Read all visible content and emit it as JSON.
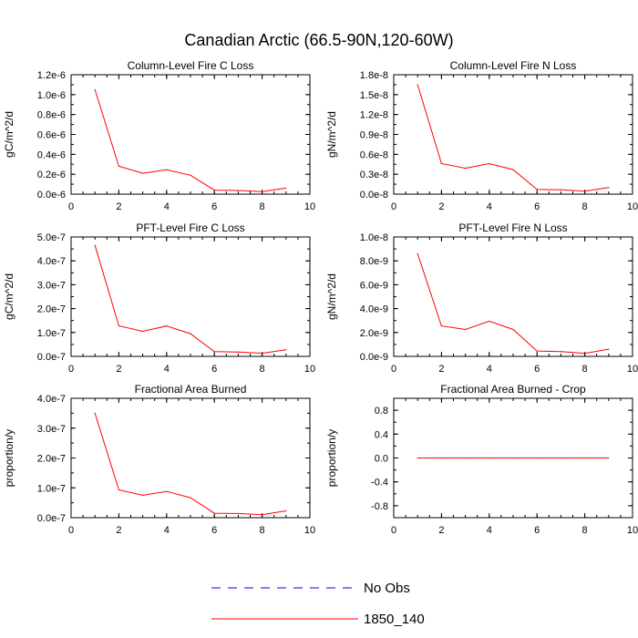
{
  "figure": {
    "title": "Canadian Arctic (66.5-90N,120-60W)"
  },
  "legend": {
    "placement": "bottom-center",
    "entries": [
      {
        "label": "No Obs",
        "color": "#0000ff",
        "dash": "dashed"
      },
      {
        "label": "1850_140",
        "color": "#ff0000",
        "dash": "solid"
      }
    ]
  },
  "chart_data": [
    {
      "type": "line",
      "title": "Column-Level Fire C Loss",
      "xlabel": "",
      "ylabel": "gC/m^2/d",
      "xlim": [
        0,
        10
      ],
      "ylim": [
        0,
        1.2e-06
      ],
      "xticks": [
        "0",
        "2",
        "4",
        "6",
        "8",
        "10"
      ],
      "yticks": [
        "0.0e-6",
        "0.2e-6",
        "0.4e-6",
        "0.6e-6",
        "0.8e-6",
        "1.0e-6",
        "1.2e-6"
      ],
      "series": [
        {
          "name": "1850_140",
          "color": "#ff0000",
          "x": [
            1,
            2,
            3,
            4,
            5,
            6,
            7,
            8,
            9
          ],
          "y": [
            1.05e-06,
            2.8e-07,
            2.1e-07,
            2.45e-07,
            1.9e-07,
            4e-08,
            3.7e-08,
            2.5e-08,
            6e-08
          ]
        }
      ]
    },
    {
      "type": "line",
      "title": "Column-Level Fire N Loss",
      "xlabel": "",
      "ylabel": "gN/m^2/d",
      "xlim": [
        0,
        10
      ],
      "ylim": [
        0,
        1.8e-08
      ],
      "xticks": [
        "0",
        "2",
        "4",
        "6",
        "8",
        "10"
      ],
      "yticks": [
        "0.0e-8",
        "0.3e-8",
        "0.6e-8",
        "0.9e-8",
        "1.2e-8",
        "1.5e-8",
        "1.8e-8"
      ],
      "series": [
        {
          "name": "1850_140",
          "color": "#ff0000",
          "x": [
            1,
            2,
            3,
            4,
            5,
            6,
            7,
            8,
            9
          ],
          "y": [
            1.65e-08,
            4.6e-09,
            3.9e-09,
            4.6e-09,
            3.7e-09,
            7e-10,
            6.5e-10,
            4.5e-10,
            1e-09
          ]
        }
      ]
    },
    {
      "type": "line",
      "title": "PFT-Level Fire C Loss",
      "xlabel": "",
      "ylabel": "gC/m^2/d",
      "xlim": [
        0,
        10
      ],
      "ylim": [
        0,
        5e-07
      ],
      "xticks": [
        "0",
        "2",
        "4",
        "6",
        "8",
        "10"
      ],
      "yticks": [
        "0.0e-7",
        "1.0e-7",
        "2.0e-7",
        "3.0e-7",
        "4.0e-7",
        "5.0e-7"
      ],
      "series": [
        {
          "name": "1850_140",
          "color": "#ff0000",
          "x": [
            1,
            2,
            3,
            4,
            5,
            6,
            7,
            8,
            9
          ],
          "y": [
            4.65e-07,
            1.28e-07,
            1.05e-07,
            1.27e-07,
            9.5e-08,
            2e-08,
            1.8e-08,
            1.3e-08,
            2.8e-08
          ]
        }
      ]
    },
    {
      "type": "line",
      "title": "PFT-Level Fire N Loss",
      "xlabel": "",
      "ylabel": "gN/m^2/d",
      "xlim": [
        0,
        10
      ],
      "ylim": [
        0,
        1e-08
      ],
      "xticks": [
        "0",
        "2",
        "4",
        "6",
        "8",
        "10"
      ],
      "yticks": [
        "0.0e-9",
        "2.0e-9",
        "4.0e-9",
        "6.0e-9",
        "8.0e-9",
        "1.0e-8"
      ],
      "series": [
        {
          "name": "1850_140",
          "color": "#ff0000",
          "x": [
            1,
            2,
            3,
            4,
            5,
            6,
            7,
            8,
            9
          ],
          "y": [
            8.6e-09,
            2.55e-09,
            2.25e-09,
            2.95e-09,
            2.25e-09,
            4.5e-10,
            4e-10,
            2.5e-10,
            6e-10
          ]
        }
      ]
    },
    {
      "type": "line",
      "title": "Fractional Area Burned",
      "xlabel": "",
      "ylabel": "proportion/y",
      "xlim": [
        0,
        10
      ],
      "ylim": [
        0,
        4e-07
      ],
      "xticks": [
        "0",
        "2",
        "4",
        "6",
        "8",
        "10"
      ],
      "yticks": [
        "0.0e-7",
        "1.0e-7",
        "2.0e-7",
        "3.0e-7",
        "4.0e-7"
      ],
      "series": [
        {
          "name": "1850_140",
          "color": "#ff0000",
          "x": [
            1,
            2,
            3,
            4,
            5,
            6,
            7,
            8,
            9
          ],
          "y": [
            3.5e-07,
            9.3e-08,
            7.5e-08,
            8.8e-08,
            6.7e-08,
            1.5e-08,
            1.4e-08,
            1e-08,
            2.3e-08
          ]
        }
      ]
    },
    {
      "type": "line",
      "title": "Fractional Area Burned - Crop",
      "xlabel": "",
      "ylabel": "proportion/y",
      "xlim": [
        0,
        10
      ],
      "ylim": [
        -1.0,
        1.0
      ],
      "xticks": [
        "0",
        "2",
        "4",
        "6",
        "8",
        "10"
      ],
      "yticks": [
        "-0.8",
        "-0.4",
        "0.0",
        "0.4",
        "0.8"
      ],
      "series": [
        {
          "name": "1850_140",
          "color": "#ff0000",
          "x": [
            1,
            2,
            3,
            4,
            5,
            6,
            7,
            8,
            9
          ],
          "y": [
            0,
            0,
            0,
            0,
            0,
            0,
            0,
            0,
            0
          ]
        }
      ]
    }
  ]
}
